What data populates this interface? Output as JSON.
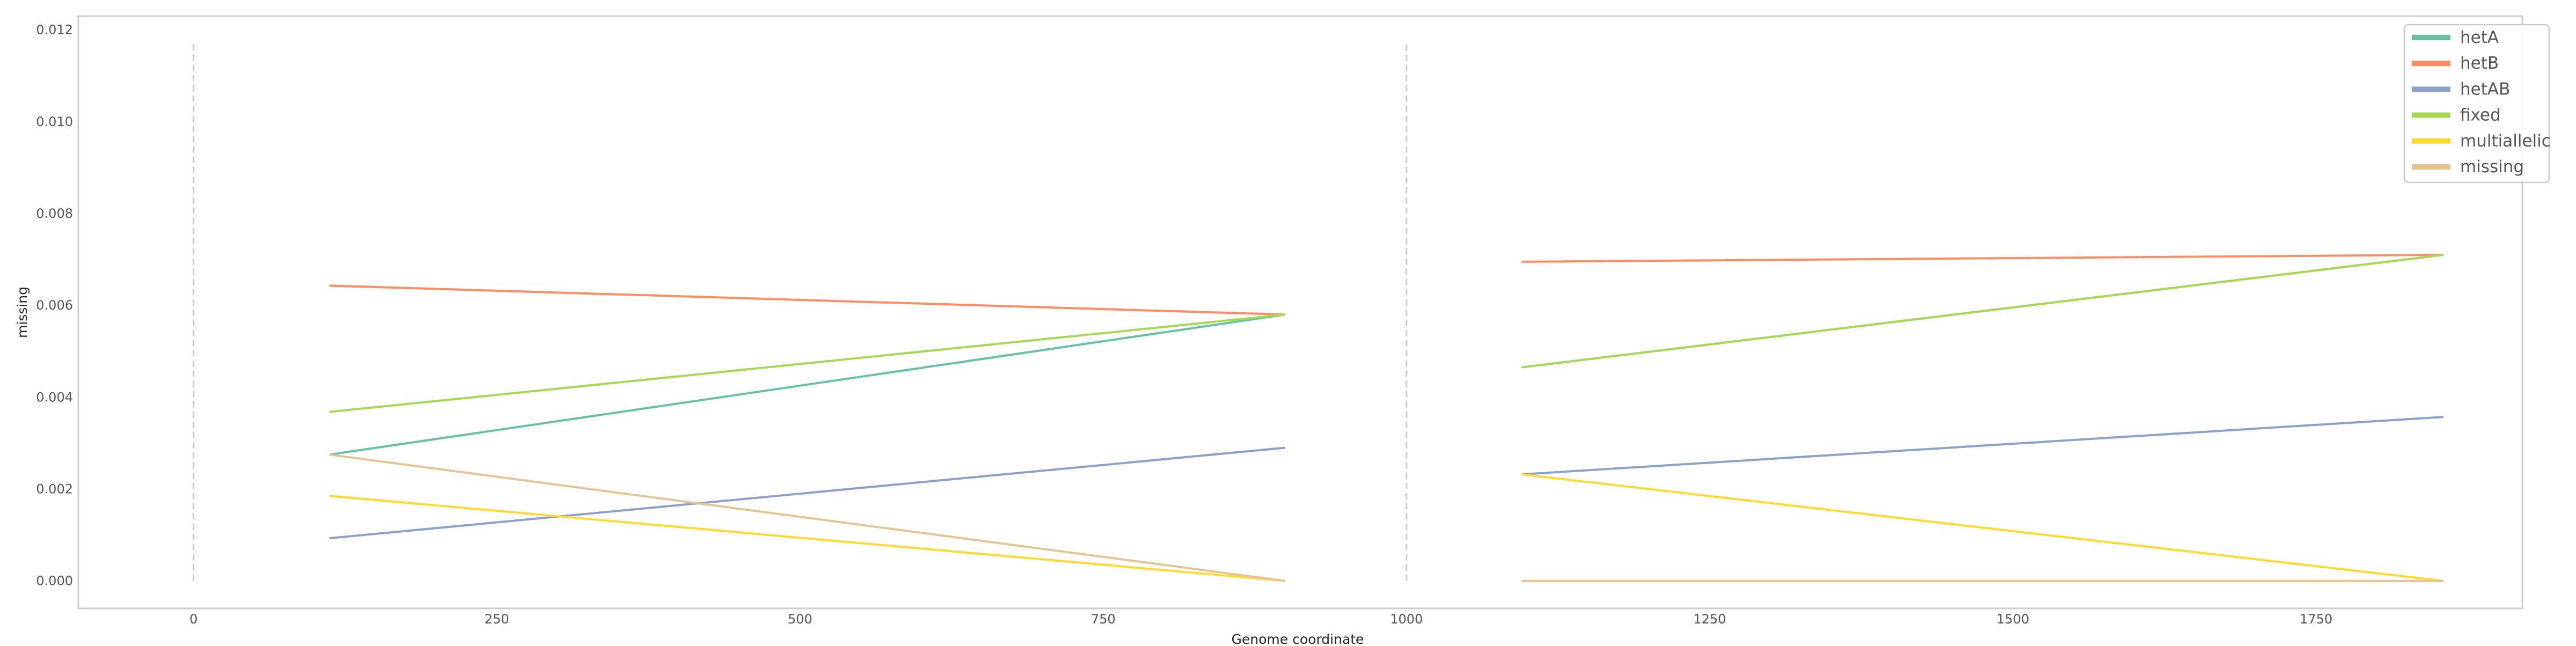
{
  "chart_data": {
    "type": "line",
    "title": "",
    "xlabel": "Genome coordinate",
    "ylabel": "missing",
    "xlim": [
      -95,
      1920
    ],
    "ylim": [
      -0.0006,
      0.0123
    ],
    "xticks": [
      0,
      250,
      500,
      750,
      1000,
      1250,
      1500,
      1750
    ],
    "xtick_labels": [
      "0",
      "250",
      "500",
      "750",
      "1000",
      "1250",
      "1500",
      "1750"
    ],
    "yticks": [
      0.0,
      0.002,
      0.004,
      0.006,
      0.008,
      0.01,
      0.012
    ],
    "ytick_labels": [
      "0.000",
      "0.002",
      "0.004",
      "0.006",
      "0.008",
      "0.010",
      "0.012"
    ],
    "grid": false,
    "legend_position": "top-right",
    "boundaries": [
      0,
      1000
    ],
    "boundary_ymax": 0.0117,
    "series": [
      {
        "name": "hetA",
        "color": "#66c2a5",
        "segments": [
          {
            "x": [
              112,
              900
            ],
            "y": [
              0.00275,
              0.0058
            ]
          },
          {
            "x": [
              1095,
              1855
            ],
            "y": [
              0.00465,
              0.0071
            ]
          }
        ]
      },
      {
        "name": "hetB",
        "color": "#fc8d62",
        "segments": [
          {
            "x": [
              112,
              900
            ],
            "y": [
              0.00643,
              0.0058
            ]
          },
          {
            "x": [
              1095,
              1855
            ],
            "y": [
              0.00695,
              0.0071
            ]
          }
        ]
      },
      {
        "name": "hetAB",
        "color": "#8da0cb",
        "segments": [
          {
            "x": [
              112,
              900
            ],
            "y": [
              0.00093,
              0.0029
            ]
          },
          {
            "x": [
              1095,
              1855
            ],
            "y": [
              0.00232,
              0.00357
            ]
          }
        ]
      },
      {
        "name": "fixed",
        "color": "#a6d854",
        "segments": [
          {
            "x": [
              112,
              900
            ],
            "y": [
              0.00368,
              0.0058
            ]
          },
          {
            "x": [
              1095,
              1855
            ],
            "y": [
              0.00465,
              0.0071
            ]
          }
        ]
      },
      {
        "name": "multiallelic",
        "color": "#ffd92f",
        "segments": [
          {
            "x": [
              112,
              900
            ],
            "y": [
              0.00185,
              0.0
            ]
          },
          {
            "x": [
              1095,
              1855
            ],
            "y": [
              0.00232,
              0.0
            ]
          }
        ]
      },
      {
        "name": "missing",
        "color": "#e5c494",
        "segments": [
          {
            "x": [
              112,
              900
            ],
            "y": [
              0.00275,
              0.0
            ]
          },
          {
            "x": [
              1095,
              1855
            ],
            "y": [
              0.0,
              0.0
            ]
          }
        ]
      }
    ]
  }
}
